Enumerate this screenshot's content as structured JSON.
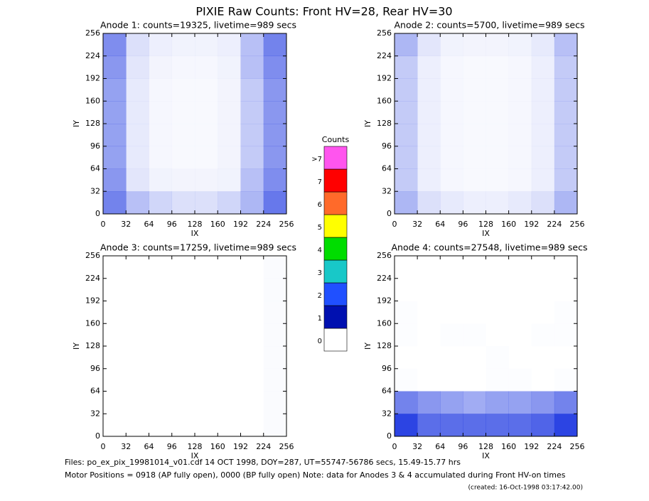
{
  "title": "PIXIE Raw Counts:  Front HV=28, Rear HV=30",
  "footer": [
    "Files: po_ex_pix_19981014_v01.cdf    14 OCT 1998, DOY=287, UT=55747-56786 secs, 15.49-15.77 hrs",
    "Motor Positions = 0918 (AP fully open), 0000 (BP fully open)    Note: data for Anodes 3 & 4 accumulated during Front HV-on times",
    "(created: 16-Oct-1998 03:17:42.00)"
  ],
  "chart_data": [
    {
      "type": "heatmap",
      "title": "Anode 1: counts=19325, livetime=989 secs",
      "xlabel": "IX",
      "ylabel": "IY",
      "xlim": [
        0,
        256
      ],
      "ylim": [
        0,
        256
      ],
      "xticks": [
        0,
        32,
        64,
        96,
        128,
        160,
        192,
        224,
        256
      ],
      "yticks": [
        0,
        32,
        64,
        96,
        128,
        160,
        192,
        224,
        256
      ],
      "color": "#1530e0",
      "z": [
        [
          0.55,
          0.15,
          0.08,
          0.06,
          0.06,
          0.08,
          0.3,
          0.6
        ],
        [
          0.5,
          0.12,
          0.05,
          0.04,
          0.04,
          0.06,
          0.3,
          0.55
        ],
        [
          0.45,
          0.1,
          0.04,
          0.03,
          0.03,
          0.05,
          0.25,
          0.5
        ],
        [
          0.45,
          0.1,
          0.04,
          0.03,
          0.03,
          0.05,
          0.25,
          0.5
        ],
        [
          0.45,
          0.1,
          0.04,
          0.03,
          0.03,
          0.05,
          0.25,
          0.5
        ],
        [
          0.45,
          0.1,
          0.04,
          0.03,
          0.03,
          0.05,
          0.25,
          0.5
        ],
        [
          0.5,
          0.12,
          0.06,
          0.05,
          0.05,
          0.06,
          0.3,
          0.55
        ],
        [
          0.6,
          0.3,
          0.2,
          0.15,
          0.15,
          0.2,
          0.35,
          0.65
        ]
      ]
    },
    {
      "type": "heatmap",
      "title": "Anode 2: counts=5700, livetime=989 secs",
      "xlabel": "IX",
      "ylabel": "IY",
      "xlim": [
        0,
        256
      ],
      "ylim": [
        0,
        256
      ],
      "xticks": [
        0,
        32,
        64,
        96,
        128,
        160,
        192,
        224,
        256
      ],
      "yticks": [
        0,
        32,
        64,
        96,
        128,
        160,
        192,
        224,
        256
      ],
      "color": "#1530e0",
      "z": [
        [
          0.35,
          0.12,
          0.06,
          0.05,
          0.05,
          0.06,
          0.1,
          0.3
        ],
        [
          0.25,
          0.08,
          0.04,
          0.03,
          0.03,
          0.04,
          0.08,
          0.25
        ],
        [
          0.25,
          0.08,
          0.04,
          0.03,
          0.03,
          0.04,
          0.08,
          0.25
        ],
        [
          0.25,
          0.08,
          0.04,
          0.03,
          0.03,
          0.04,
          0.08,
          0.25
        ],
        [
          0.25,
          0.08,
          0.04,
          0.03,
          0.03,
          0.04,
          0.08,
          0.25
        ],
        [
          0.25,
          0.08,
          0.04,
          0.03,
          0.03,
          0.04,
          0.08,
          0.25
        ],
        [
          0.25,
          0.08,
          0.04,
          0.03,
          0.03,
          0.04,
          0.08,
          0.25
        ],
        [
          0.35,
          0.15,
          0.1,
          0.08,
          0.08,
          0.1,
          0.15,
          0.35
        ]
      ]
    },
    {
      "type": "heatmap",
      "title": "Anode 3: counts=17259, livetime=989 secs",
      "xlabel": "IX",
      "ylabel": "IY",
      "xlim": [
        0,
        256
      ],
      "ylim": [
        0,
        256
      ],
      "xticks": [
        0,
        32,
        64,
        96,
        128,
        160,
        192,
        224,
        256
      ],
      "yticks": [
        0,
        32,
        64,
        96,
        128,
        160,
        192,
        224,
        256
      ],
      "color": "#1530e0",
      "z": [
        [
          0,
          0,
          0,
          0,
          0,
          0,
          0,
          0.02
        ],
        [
          0,
          0,
          0,
          0,
          0,
          0,
          0,
          0.02
        ],
        [
          0,
          0,
          0,
          0,
          0,
          0,
          0,
          0.02
        ],
        [
          0,
          0,
          0,
          0,
          0,
          0,
          0,
          0.02
        ],
        [
          0,
          0,
          0,
          0,
          0,
          0,
          0,
          0.02
        ],
        [
          0,
          0,
          0,
          0,
          0,
          0,
          0,
          0.02
        ],
        [
          0,
          0,
          0,
          0,
          0,
          0,
          0,
          0.02
        ],
        [
          0,
          0,
          0,
          0,
          0,
          0,
          0,
          0.02
        ]
      ]
    },
    {
      "type": "heatmap",
      "title": "Anode 4: counts=27548, livetime=989 secs",
      "xlabel": "IX",
      "ylabel": "IY",
      "xlim": [
        0,
        256
      ],
      "ylim": [
        0,
        256
      ],
      "xticks": [
        0,
        32,
        64,
        96,
        128,
        160,
        192,
        224,
        256
      ],
      "yticks": [
        0,
        32,
        64,
        96,
        128,
        160,
        192,
        224,
        256
      ],
      "color": "#1530e0",
      "z": [
        [
          0,
          0,
          0,
          0,
          0,
          0,
          0,
          0
        ],
        [
          0,
          0,
          0,
          0,
          0,
          0,
          0,
          0
        ],
        [
          0.01,
          0,
          0,
          0,
          0,
          0,
          0,
          0.01
        ],
        [
          0.01,
          0,
          0.01,
          0.01,
          0,
          0,
          0.01,
          0.01
        ],
        [
          0,
          0,
          0,
          0,
          0.01,
          0,
          0,
          0
        ],
        [
          0.01,
          0,
          0,
          0,
          0.01,
          0.01,
          0,
          0.01
        ],
        [
          0.6,
          0.5,
          0.45,
          0.4,
          0.45,
          0.45,
          0.5,
          0.6
        ],
        [
          0.9,
          0.7,
          0.7,
          0.7,
          0.7,
          0.7,
          0.75,
          0.9
        ]
      ]
    },
    {
      "type": "colorbar",
      "title": "Counts",
      "labels": [
        "0",
        "1",
        "2",
        "3",
        "4",
        "5",
        "6",
        "7",
        ">7"
      ],
      "colors": [
        "#ffffff",
        "#0010b0",
        "#2050ff",
        "#18c8c8",
        "#00dd00",
        "#ffff00",
        "#ff6a2a",
        "#ff0000",
        "#ff55ee"
      ]
    }
  ]
}
